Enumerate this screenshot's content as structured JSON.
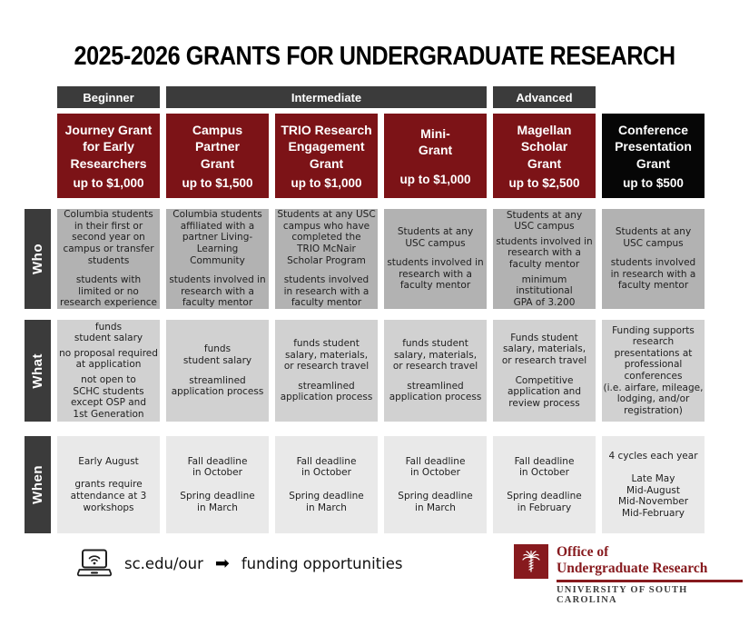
{
  "title": "2025-2026 GRANTS FOR UNDERGRADUATE RESEARCH",
  "levels": {
    "beginner": "Beginner",
    "intermediate": "Intermediate",
    "advanced": "Advanced"
  },
  "row_labels": {
    "who": "Who",
    "what": "What",
    "when": "When"
  },
  "cols": [
    {
      "name": "Journey Grant\nfor Early\nResearchers",
      "amount": "up to $1,000",
      "who": [
        "Columbia students\nin their first or\nsecond year on\ncampus or transfer\nstudents",
        "students with\nlimited or no\nresearch experience"
      ],
      "what": [
        "funds\nstudent salary",
        "no proposal required\nat application",
        "not open to\nSCHC students\nexcept OSP and\n1st Generation"
      ],
      "when": [
        "Early August",
        "grants require\nattendance at 3\nworkshops"
      ]
    },
    {
      "name": "Campus\nPartner\nGrant",
      "amount": "up to $1,500",
      "who": [
        "Columbia students\naffiliated with a\npartner Living-\nLearning\nCommunity",
        "students involved in\nresearch with a\nfaculty mentor"
      ],
      "what": [
        "funds\nstudent salary",
        "streamlined\napplication process"
      ],
      "when": [
        "Fall deadline\nin October",
        "Spring deadline\nin March"
      ]
    },
    {
      "name": "TRIO Research\nEngagement\nGrant",
      "amount": "up to $1,000",
      "who": [
        "Students at any USC\ncampus who have\ncompleted the\nTRIO McNair\nScholar Program",
        "students involved\nin research with a\nfaculty mentor"
      ],
      "what": [
        "funds student\nsalary, materials,\nor research travel",
        "streamlined\napplication process"
      ],
      "when": [
        "Fall deadline\nin October",
        "Spring deadline\nin March"
      ]
    },
    {
      "name": "Mini-\nGrant",
      "amount": "up to $1,000",
      "who": [
        "Students at any\nUSC campus",
        "students involved in\nresearch with a\nfaculty mentor"
      ],
      "what": [
        "funds student\nsalary, materials,\nor research travel",
        "streamlined\napplication process"
      ],
      "when": [
        "Fall deadline\nin October",
        "Spring deadline\nin March"
      ]
    },
    {
      "name": "Magellan\nScholar\nGrant",
      "amount": "up to $2,500",
      "who": [
        "Students at any\nUSC campus",
        "students involved in\nresearch with a\nfaculty mentor",
        "minimum\ninstitutional\nGPA of 3.200"
      ],
      "what": [
        "Funds student\nsalary, materials,\nor research travel",
        "Competitive\napplication and\nreview process"
      ],
      "when": [
        "Fall deadline\nin October",
        "Spring deadline\nin February"
      ]
    },
    {
      "name": "Conference\nPresentation\nGrant",
      "amount": "up to $500",
      "who": [
        "Students at any\nUSC campus",
        "students involved\nin research with a\nfaculty mentor"
      ],
      "what": [
        "Funding supports\nresearch\npresentations at\nprofessional\nconferences\n(i.e. airfare, mileage,\nlodging, and/or\nregistration)"
      ],
      "when": [
        "4 cycles each year",
        "Late May\nMid-August\nMid-November\nMid-February"
      ]
    }
  ],
  "footer": {
    "laptop_icon": "laptop-wifi-icon",
    "url": "sc.edu/our",
    "arrow": "➡",
    "text": "funding opportunities"
  },
  "logo": {
    "tree_icon": "palmetto-tree-icon",
    "line1": "Office of",
    "line2": "Undergraduate Research",
    "line3": "UNIVERSITY OF SOUTH CAROLINA"
  },
  "colors": {
    "garnet": "#7c1317",
    "logoGarnet": "#871a1e",
    "charcoal": "#3b3b3b",
    "whoGray": "#b2b2b2",
    "whatGray": "#d1d1d1",
    "whenGray": "#e9e9e9"
  }
}
